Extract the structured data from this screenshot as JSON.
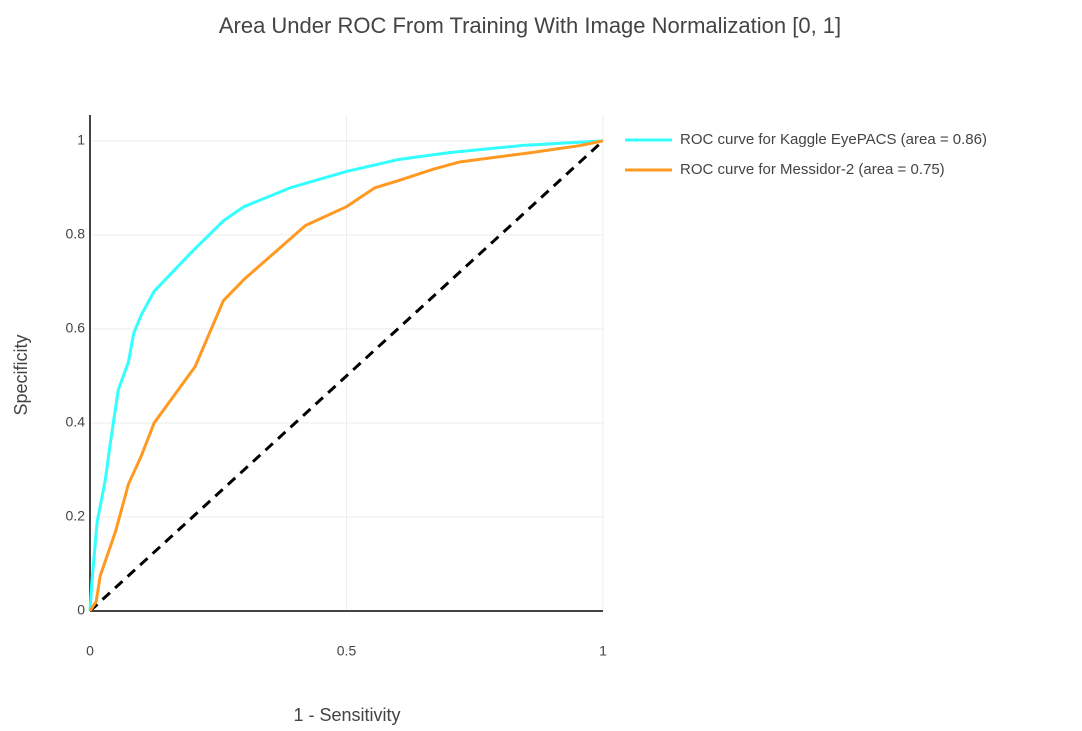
{
  "chart_data": {
    "type": "line",
    "title": "Area Under ROC From Training With Image Normalization [0, 1]",
    "x_label": "1 - Sensitivity",
    "y_label": "Specificity",
    "series": [
      {
        "name": "ROC curve for Kaggle EyePACS (area = 0.86)",
        "color": "#33ffff",
        "x": [
          0,
          0.004,
          0.014,
          0.03,
          0.04,
          0.055,
          0.075,
          0.085,
          0.1,
          0.125,
          0.195,
          0.26,
          0.3,
          0.39,
          0.5,
          0.6,
          0.7,
          0.84,
          1
        ],
        "values": [
          0,
          0.066,
          0.19,
          0.28,
          0.36,
          0.47,
          0.53,
          0.59,
          0.63,
          0.68,
          0.76,
          0.83,
          0.86,
          0.9,
          0.935,
          0.96,
          0.975,
          0.99,
          1
        ]
      },
      {
        "name": "ROC curve for Messidor-2 (area = 0.75)",
        "color": "#ff9922",
        "x": [
          0,
          0.012,
          0.02,
          0.05,
          0.075,
          0.1,
          0.125,
          0.165,
          0.205,
          0.26,
          0.3,
          0.42,
          0.5,
          0.555,
          0.6,
          0.67,
          0.72,
          0.86,
          0.955,
          1
        ],
        "values": [
          0,
          0.02,
          0.075,
          0.17,
          0.27,
          0.33,
          0.4,
          0.46,
          0.52,
          0.66,
          0.705,
          0.82,
          0.86,
          0.9,
          0.915,
          0.94,
          0.955,
          0.975,
          0.99,
          1
        ]
      }
    ],
    "reference_line": {
      "x": [
        0,
        1
      ],
      "values": [
        0,
        1
      ],
      "color": "#000000",
      "dash": true
    },
    "xlim": [
      0,
      1
    ],
    "xticks": [
      0,
      0.5,
      1
    ],
    "ylim": [
      0,
      1.055
    ],
    "yticks": [
      0,
      0.2,
      0.4,
      0.6,
      0.8,
      1
    ],
    "grid": true,
    "legend": "right"
  }
}
